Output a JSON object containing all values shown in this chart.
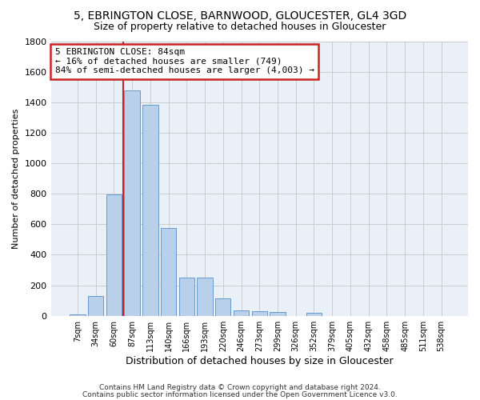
{
  "title": "5, EBRINGTON CLOSE, BARNWOOD, GLOUCESTER, GL4 3GD",
  "subtitle": "Size of property relative to detached houses in Gloucester",
  "xlabel": "Distribution of detached houses by size in Gloucester",
  "ylabel": "Number of detached properties",
  "categories": [
    "7sqm",
    "34sqm",
    "60sqm",
    "87sqm",
    "113sqm",
    "140sqm",
    "166sqm",
    "193sqm",
    "220sqm",
    "246sqm",
    "273sqm",
    "299sqm",
    "326sqm",
    "352sqm",
    "379sqm",
    "405sqm",
    "432sqm",
    "458sqm",
    "485sqm",
    "511sqm",
    "538sqm"
  ],
  "bar_values": [
    10,
    130,
    795,
    1480,
    1385,
    575,
    250,
    250,
    115,
    35,
    30,
    25,
    0,
    20,
    0,
    0,
    0,
    0,
    0,
    0,
    0
  ],
  "bar_color": "#b8d0ea",
  "bar_edge_color": "#6699cc",
  "vline_index": 3,
  "vline_color": "#cc2222",
  "annotation_line1": "5 EBRINGTON CLOSE: 84sqm",
  "annotation_line2": "← 16% of detached houses are smaller (749)",
  "annotation_line3": "84% of semi-detached houses are larger (4,003) →",
  "annotation_box_color": "#cc2222",
  "ylim": [
    0,
    1800
  ],
  "yticks": [
    0,
    200,
    400,
    600,
    800,
    1000,
    1200,
    1400,
    1600,
    1800
  ],
  "grid_color": "#cccccc",
  "bg_color": "#eaf0f8",
  "footer_line1": "Contains HM Land Registry data © Crown copyright and database right 2024.",
  "footer_line2": "Contains public sector information licensed under the Open Government Licence v3.0."
}
